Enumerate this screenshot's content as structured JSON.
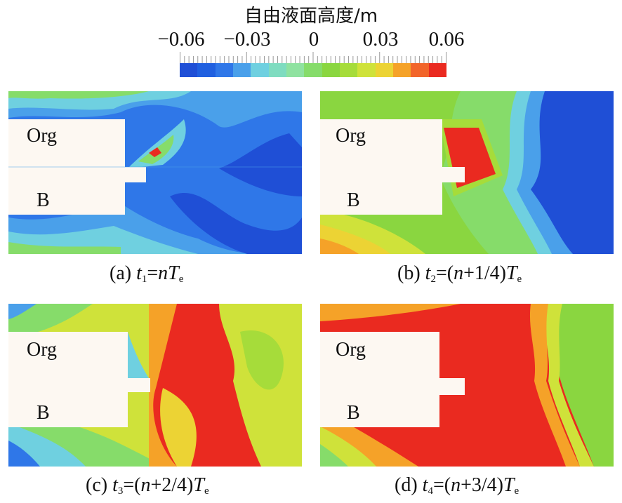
{
  "colorbar": {
    "title": "自由液面高度/m",
    "ticks": [
      "−0.06",
      "−0.03",
      "0",
      "0.03",
      "0.06"
    ],
    "colors": [
      "#1f4fd6",
      "#2060e0",
      "#2f77e8",
      "#4aa0ea",
      "#6fd0e0",
      "#7fdcc0",
      "#8fe2a0",
      "#86dc6a",
      "#8ad640",
      "#a6dc3a",
      "#cfe23a",
      "#ecd334",
      "#f5a228",
      "#f2652a",
      "#ea2a20"
    ]
  },
  "panels": [
    {
      "id": "a",
      "label_top": "Org",
      "label_bottom": "B",
      "caption_prefix": "(a) ",
      "caption_var": "t",
      "caption_sub": "1",
      "caption_mid": "=",
      "caption_n": "n",
      "caption_T": "T",
      "caption_e": "e",
      "caption_paren_open": "",
      "caption_frac": "",
      "caption_paren_close": ""
    },
    {
      "id": "b",
      "label_top": "Org",
      "label_bottom": "B",
      "caption_prefix": "(b) ",
      "caption_var": "t",
      "caption_sub": "2",
      "caption_mid": "=(",
      "caption_n": "n",
      "caption_frac": "+1/4)",
      "caption_T": "T",
      "caption_e": "e"
    },
    {
      "id": "c",
      "label_top": "Org",
      "label_bottom": "B",
      "caption_prefix": "(c) ",
      "caption_var": "t",
      "caption_sub": "3",
      "caption_mid": "=(",
      "caption_n": "n",
      "caption_frac": "+2/4)",
      "caption_T": "T",
      "caption_e": "e"
    },
    {
      "id": "d",
      "label_top": "Org",
      "label_bottom": "B",
      "caption_prefix": "(d) ",
      "caption_var": "t",
      "caption_sub": "4",
      "caption_mid": "=(",
      "caption_n": "n",
      "caption_frac": "+3/4)",
      "caption_T": "T",
      "caption_e": "e"
    }
  ]
}
